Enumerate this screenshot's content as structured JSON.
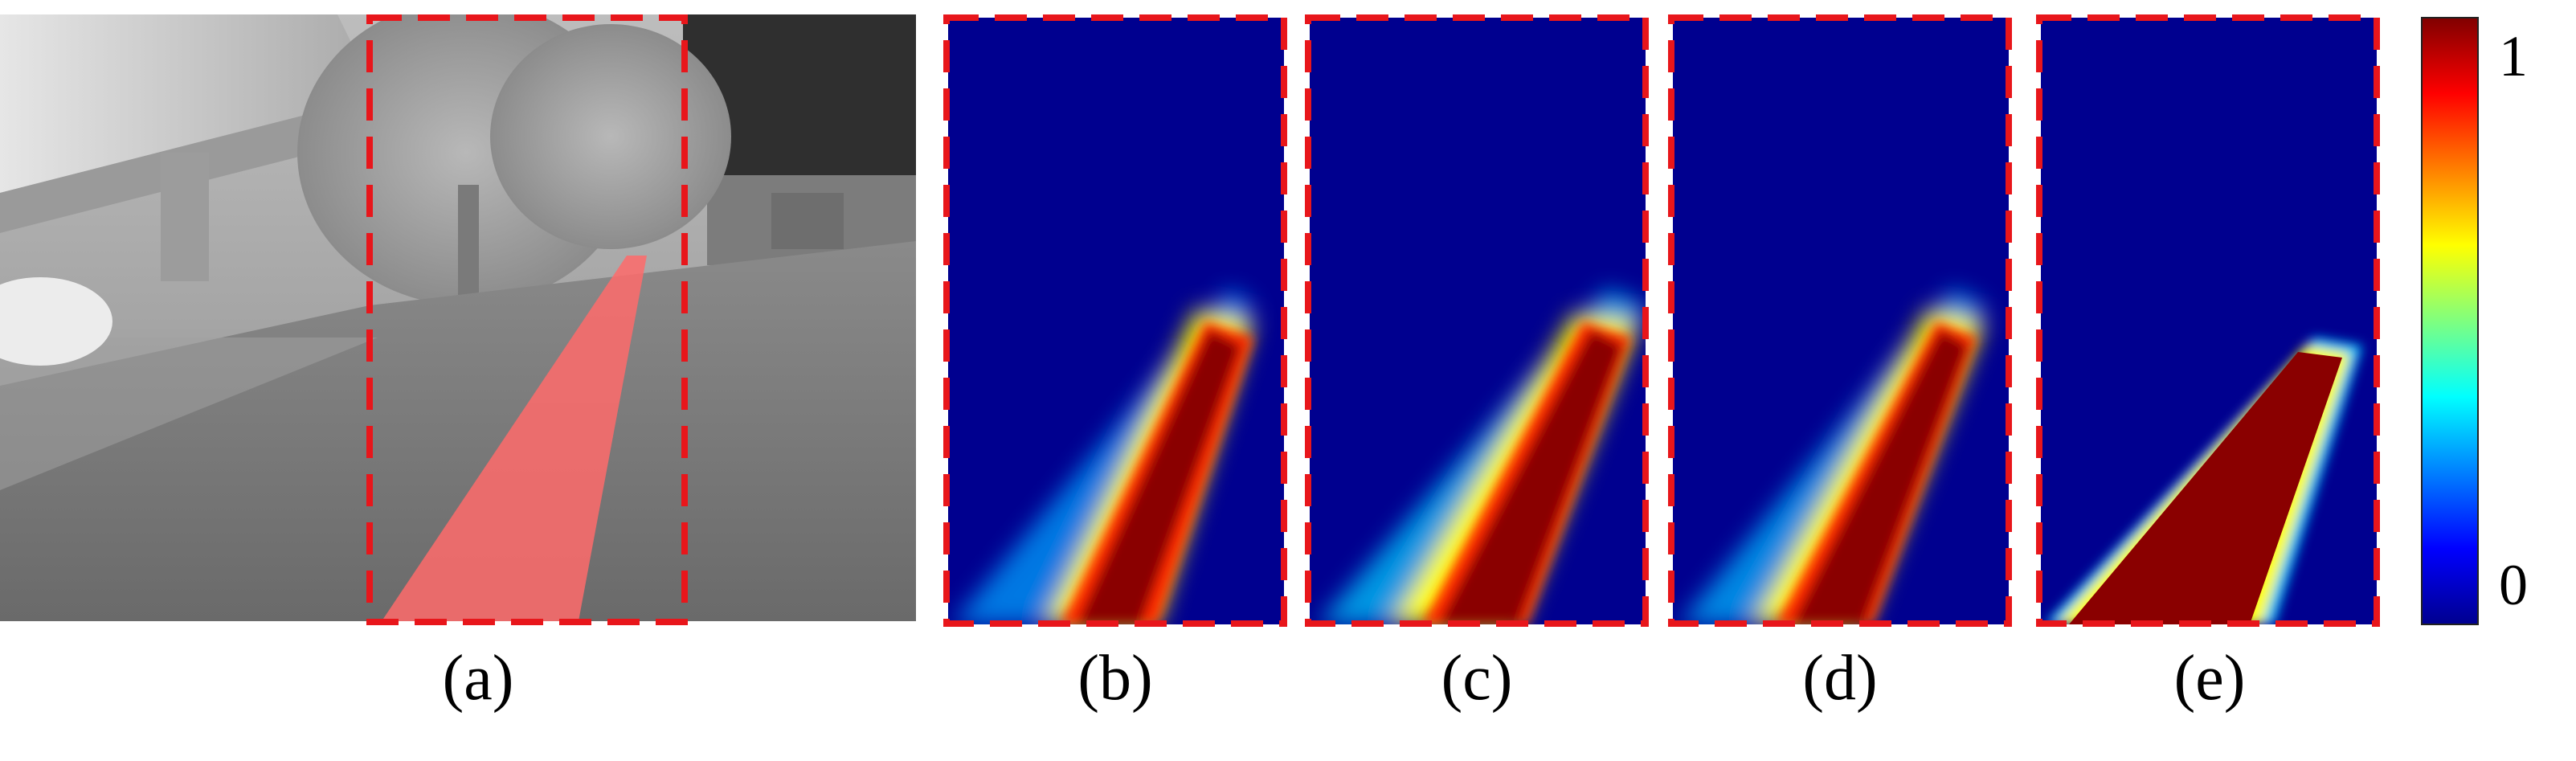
{
  "panels": [
    {
      "id": "a",
      "caption": "(a)",
      "kind": "thermal-photo"
    },
    {
      "id": "b",
      "caption": "(b)",
      "kind": "heatmap"
    },
    {
      "id": "c",
      "caption": "(c)",
      "kind": "heatmap"
    },
    {
      "id": "d",
      "caption": "(d)",
      "kind": "heatmap"
    },
    {
      "id": "e",
      "caption": "(e)",
      "kind": "heatmap"
    }
  ],
  "colorbar": {
    "max_label": "1",
    "min_label": "0",
    "colormap": "jet"
  },
  "colors": {
    "highlight_box": "#e8161b",
    "path_overlay": "#ff6b6b",
    "heatmap_background": "#00008f",
    "heatmap_core": "#8a0000"
  }
}
